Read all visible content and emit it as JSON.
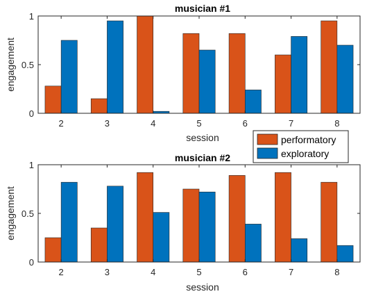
{
  "colors": {
    "performatory": "#D95319",
    "exploratory": "#0072BD",
    "axis": "#262626",
    "frame_background": "#FFFFFF"
  },
  "legend": {
    "placement": "between-panels-right",
    "entries": [
      "performatory",
      "exploratory"
    ]
  },
  "chart_data": [
    {
      "type": "bar",
      "title": "musician #1",
      "xlabel": "session",
      "ylabel": "engagement",
      "categories": [
        "2",
        "3",
        "4",
        "5",
        "6",
        "7",
        "8"
      ],
      "ylim": [
        0,
        1
      ],
      "yticks": [
        "0",
        "0.5",
        "1"
      ],
      "grid": false,
      "series": [
        {
          "name": "performatory",
          "values": [
            0.28,
            0.15,
            1.0,
            0.82,
            0.82,
            0.6,
            0.95
          ]
        },
        {
          "name": "exploratory",
          "values": [
            0.75,
            0.95,
            0.02,
            0.65,
            0.24,
            0.79,
            0.7
          ]
        }
      ]
    },
    {
      "type": "bar",
      "title": "musician #2",
      "xlabel": "session",
      "ylabel": "engagement",
      "categories": [
        "2",
        "3",
        "4",
        "5",
        "6",
        "7",
        "8"
      ],
      "ylim": [
        0,
        1
      ],
      "yticks": [
        "0",
        "0.5",
        "1"
      ],
      "grid": false,
      "series": [
        {
          "name": "performatory",
          "values": [
            0.25,
            0.35,
            0.92,
            0.75,
            0.89,
            0.92,
            0.82
          ]
        },
        {
          "name": "exploratory",
          "values": [
            0.82,
            0.78,
            0.51,
            0.72,
            0.39,
            0.24,
            0.17
          ]
        }
      ]
    }
  ]
}
